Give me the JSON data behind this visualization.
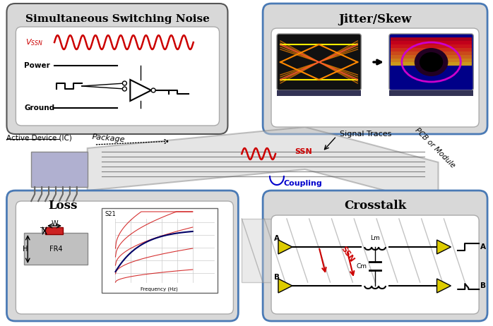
{
  "bg_color": "#ffffff",
  "panel_bg": "#d8d8d8",
  "inner_bg": "#f0f0f0",
  "border_color_blue": "#4a7ab5",
  "border_color_dark": "#555555",
  "title_ssn": "Simultaneous Switching Noise",
  "title_jitter": "Jitter/Skew",
  "title_loss": "Loss",
  "title_crosstalk": "Crosstalk",
  "label_active": "Active Device (IC)",
  "label_package": "Package",
  "label_signal": "Signal Traces",
  "label_pcb": "PCB or Module",
  "label_ssn": "SSN",
  "label_coupling": "Coupling",
  "red_color": "#cc0000",
  "blue_color": "#0000cc",
  "orange_color": "#ff8800"
}
